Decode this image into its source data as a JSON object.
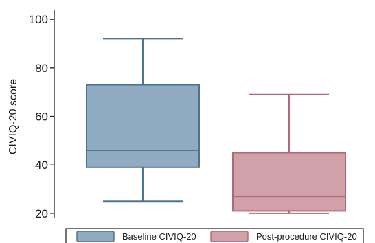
{
  "chart_data": {
    "type": "box",
    "ylabel": "CIVIQ-20 score",
    "yticks": [
      20,
      40,
      60,
      80,
      100
    ],
    "ylim": [
      18,
      104
    ],
    "grid": false,
    "legend_position": "bottom",
    "series": [
      {
        "name": "Baseline CIVIQ-20",
        "whisker_low": 25,
        "q1": 39,
        "median": 46,
        "q3": 73,
        "whisker_high": 92,
        "fill": "#91acc2",
        "stroke": "#4d7592"
      },
      {
        "name": "Post-procedure CIVIQ-20",
        "whisker_low": 20,
        "q1": 21,
        "median": 27,
        "q3": 45,
        "whisker_high": 69,
        "fill": "#d1a1aa",
        "stroke": "#b36877"
      }
    ]
  }
}
